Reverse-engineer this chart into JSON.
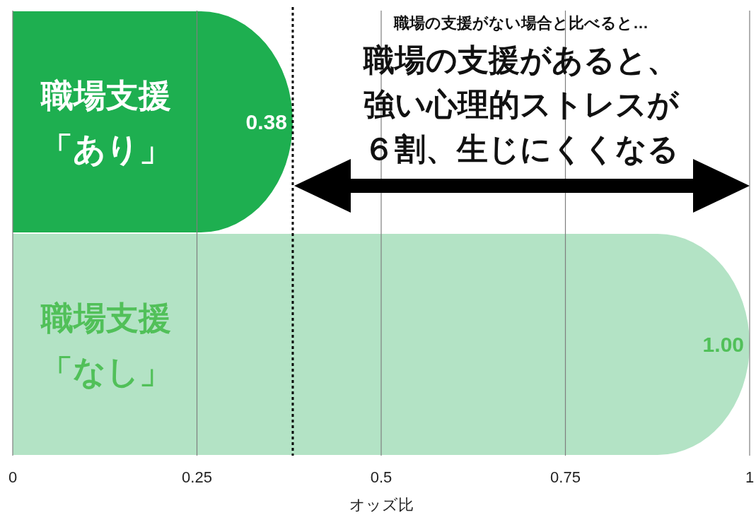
{
  "chart_data": {
    "type": "bar",
    "orientation": "horizontal",
    "categories": [
      "職場支援「あり」",
      "職場支援「なし」"
    ],
    "values": [
      0.38,
      1.0
    ],
    "value_labels": [
      "0.38",
      "1.00"
    ],
    "colors": [
      "#1eaf50",
      "#b3e3c5"
    ],
    "xlim": [
      0,
      1
    ],
    "xticks": [
      0,
      0.25,
      0.5,
      0.75,
      1
    ],
    "xlabel": "オッズ比",
    "grid": "x",
    "ref_lines": [
      {
        "axis": "x",
        "value": 0.38,
        "color": "#000000",
        "line_style": "dotted"
      }
    ],
    "annotations": [
      "職場の支援がない場合と比べると…",
      "職場の支援があると、",
      "強い心理的ストレスが",
      "６割、生じにくくなる"
    ]
  }
}
